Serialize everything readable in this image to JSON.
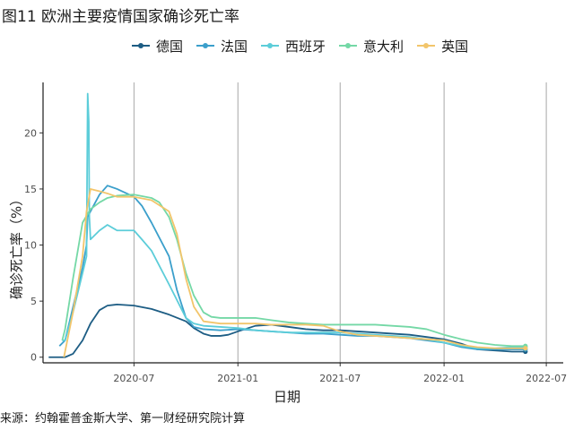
{
  "chart_data": {
    "type": "line",
    "title": "图11 欧洲主要疫情国家确诊死亡率",
    "xlabel": "日期",
    "ylabel": "确诊死亡率（%）",
    "source": "来源：约翰霍普金斯大学、第一财经研究院计算",
    "x_ticks": [
      "2020-07",
      "2021-01",
      "2021-07",
      "2022-01",
      "2022-07"
    ],
    "y_ticks": [
      0,
      5,
      10,
      15,
      20
    ],
    "xlim": [
      "2020-01-22",
      "2022-07-31"
    ],
    "ylim": [
      -0.5,
      24.5
    ],
    "grid": "vertical major lines only",
    "legend_position": "top",
    "series": [
      {
        "name": "德国",
        "color": "#1d5d84",
        "x": [
          "2020-02-01",
          "2020-03-01",
          "2020-03-15",
          "2020-04-01",
          "2020-04-15",
          "2020-05-01",
          "2020-05-15",
          "2020-06-01",
          "2020-07-01",
          "2020-08-01",
          "2020-09-01",
          "2020-10-01",
          "2020-10-15",
          "2020-11-01",
          "2020-11-15",
          "2020-12-01",
          "2020-12-15",
          "2021-01-01",
          "2021-02-01",
          "2021-03-01",
          "2021-04-01",
          "2021-05-01",
          "2021-06-01",
          "2021-07-01",
          "2021-08-01",
          "2021-09-01",
          "2021-10-01",
          "2021-11-01",
          "2021-12-01",
          "2022-01-01",
          "2022-02-01",
          "2022-03-01",
          "2022-04-01",
          "2022-05-01",
          "2022-05-25"
        ],
        "values": [
          0.0,
          0.0,
          0.3,
          1.5,
          3.0,
          4.2,
          4.6,
          4.7,
          4.6,
          4.3,
          3.8,
          3.2,
          2.6,
          2.1,
          1.9,
          1.9,
          2.0,
          2.3,
          2.8,
          2.9,
          2.7,
          2.5,
          2.4,
          2.4,
          2.3,
          2.2,
          2.1,
          2.0,
          1.8,
          1.6,
          1.2,
          0.7,
          0.6,
          0.5,
          0.5
        ]
      },
      {
        "name": "法国",
        "color": "#3b9fcb",
        "x": [
          "2020-02-20",
          "2020-03-01",
          "2020-03-20",
          "2020-04-01",
          "2020-04-08",
          "2020-04-10",
          "2020-04-15",
          "2020-05-01",
          "2020-05-15",
          "2020-06-01",
          "2020-07-01",
          "2020-07-15",
          "2020-08-01",
          "2020-09-01",
          "2020-09-15",
          "2020-10-01",
          "2020-10-15",
          "2020-11-01",
          "2020-12-01",
          "2021-01-01",
          "2021-02-01",
          "2021-03-01",
          "2021-04-01",
          "2021-05-01",
          "2021-06-01",
          "2021-07-01",
          "2021-08-01",
          "2021-09-01",
          "2021-10-01",
          "2021-11-01",
          "2021-12-01",
          "2022-01-01",
          "2022-02-01",
          "2022-03-01",
          "2022-04-01",
          "2022-05-01",
          "2022-05-25"
        ],
        "values": [
          1.0,
          1.5,
          5.5,
          8.0,
          10.0,
          12.5,
          13.0,
          14.5,
          15.3,
          15.0,
          14.3,
          13.5,
          12.0,
          9.0,
          6.0,
          3.5,
          2.7,
          2.5,
          2.4,
          2.5,
          2.4,
          2.3,
          2.2,
          2.1,
          2.1,
          2.0,
          1.9,
          1.9,
          1.8,
          1.7,
          1.5,
          1.3,
          0.9,
          0.7,
          0.7,
          0.7,
          0.7
        ]
      },
      {
        "name": "西班牙",
        "color": "#5ccdd9",
        "x": [
          "2020-02-25",
          "2020-03-01",
          "2020-03-15",
          "2020-04-01",
          "2020-04-08",
          "2020-04-10",
          "2020-04-12",
          "2020-04-13",
          "2020-04-15",
          "2020-05-01",
          "2020-05-15",
          "2020-06-01",
          "2020-07-01",
          "2020-07-15",
          "2020-08-01",
          "2020-09-01",
          "2020-10-01",
          "2020-10-15",
          "2020-11-01",
          "2020-12-01",
          "2021-01-01",
          "2021-02-01",
          "2021-03-01",
          "2021-04-01",
          "2021-05-01",
          "2021-06-01",
          "2021-07-01",
          "2021-08-01",
          "2021-09-01",
          "2021-10-01",
          "2021-11-01",
          "2021-12-01",
          "2022-01-01",
          "2022-02-01",
          "2022-03-01",
          "2022-04-01",
          "2022-05-01",
          "2022-05-25"
        ],
        "values": [
          1.5,
          1.5,
          4.0,
          7.5,
          9.0,
          23.5,
          21.0,
          12.5,
          10.5,
          11.3,
          11.8,
          11.3,
          11.3,
          10.5,
          9.5,
          6.5,
          3.5,
          3.0,
          2.8,
          2.7,
          2.6,
          2.4,
          2.3,
          2.2,
          2.2,
          2.2,
          2.2,
          2.1,
          2.0,
          1.9,
          1.8,
          1.6,
          1.3,
          1.0,
          0.8,
          0.8,
          0.9,
          0.9
        ]
      },
      {
        "name": "意大利",
        "color": "#74d8a6",
        "x": [
          "2020-02-25",
          "2020-03-01",
          "2020-03-15",
          "2020-04-01",
          "2020-04-15",
          "2020-05-01",
          "2020-05-15",
          "2020-06-01",
          "2020-07-01",
          "2020-08-01",
          "2020-08-15",
          "2020-09-01",
          "2020-09-15",
          "2020-10-01",
          "2020-10-15",
          "2020-11-01",
          "2020-11-15",
          "2020-12-01",
          "2021-01-01",
          "2021-02-01",
          "2021-03-01",
          "2021-04-01",
          "2021-05-01",
          "2021-06-01",
          "2021-07-01",
          "2021-08-01",
          "2021-09-01",
          "2021-10-01",
          "2021-11-01",
          "2021-12-01",
          "2022-01-01",
          "2022-02-01",
          "2022-03-01",
          "2022-04-01",
          "2022-05-01",
          "2022-05-25"
        ],
        "values": [
          1.5,
          2.5,
          7.0,
          12.0,
          13.2,
          13.8,
          14.2,
          14.4,
          14.5,
          14.2,
          13.8,
          12.5,
          10.5,
          7.5,
          5.5,
          4.0,
          3.6,
          3.5,
          3.5,
          3.5,
          3.3,
          3.1,
          3.0,
          2.9,
          2.9,
          2.9,
          2.9,
          2.8,
          2.7,
          2.5,
          2.0,
          1.6,
          1.3,
          1.1,
          1.0,
          1.0
        ]
      },
      {
        "name": "英国",
        "color": "#f2c56b",
        "x": [
          "2020-02-28",
          "2020-03-01",
          "2020-03-15",
          "2020-04-01",
          "2020-04-08",
          "2020-04-15",
          "2020-05-01",
          "2020-05-15",
          "2020-06-01",
          "2020-07-01",
          "2020-08-01",
          "2020-09-01",
          "2020-09-15",
          "2020-10-01",
          "2020-10-15",
          "2020-11-01",
          "2020-12-01",
          "2021-01-01",
          "2021-02-01",
          "2021-03-01",
          "2021-04-01",
          "2021-05-01",
          "2021-06-01",
          "2021-07-01",
          "2021-08-01",
          "2021-09-01",
          "2021-10-01",
          "2021-11-01",
          "2021-12-01",
          "2022-01-01",
          "2022-02-01",
          "2022-03-01",
          "2022-04-01",
          "2022-05-01",
          "2022-05-25"
        ],
        "values": [
          0.0,
          0.5,
          4.0,
          9.0,
          13.0,
          15.0,
          14.8,
          14.6,
          14.3,
          14.3,
          14.0,
          13.0,
          11.0,
          7.0,
          4.5,
          3.2,
          3.0,
          3.0,
          3.0,
          2.9,
          2.9,
          2.9,
          2.8,
          2.3,
          2.0,
          1.9,
          1.8,
          1.7,
          1.6,
          1.5,
          1.1,
          0.9,
          0.8,
          0.8,
          0.8
        ]
      }
    ]
  }
}
